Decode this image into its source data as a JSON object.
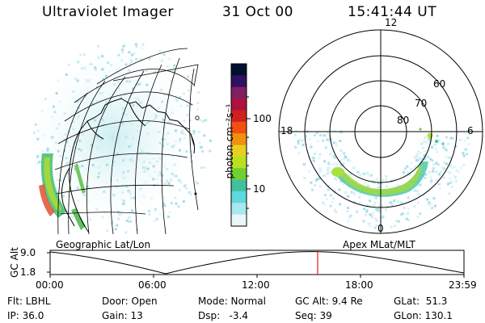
{
  "header": {
    "instrument": "Ultraviolet Imager",
    "date": "31 Oct 00",
    "time": "15:41:44 UT"
  },
  "colorbar": {
    "unit_label": "photon cm⁻²s⁻¹",
    "tick_labels": [
      "100",
      "10"
    ],
    "colors": [
      "#001030",
      "#301060",
      "#802060",
      "#b01040",
      "#d02020",
      "#f05010",
      "#f09010",
      "#e8d020",
      "#b8e020",
      "#70d030",
      "#40c0a0",
      "#60d8e0",
      "#a8e8f0",
      "#e8f8f8"
    ]
  },
  "left_panel": {
    "label": "Geographic Lat/Lon"
  },
  "right_panel": {
    "label": "Apex MLat/MLT",
    "mlt_labels": {
      "top": "12",
      "left": "18",
      "right": "6",
      "bottom": "0"
    },
    "lat_labels": [
      "60",
      "70",
      "80"
    ]
  },
  "altitude_plot": {
    "ylabel": "GC Alt",
    "yticks": [
      "9.0",
      "1.8"
    ],
    "xticks": [
      "00:00",
      "06:00",
      "12:00",
      "18:00",
      "23:59"
    ],
    "marker_color": "#e02020"
  },
  "info": {
    "flt": "Flt: LBHL",
    "ip": "IP: 36.0",
    "door": "Door: Open",
    "gain": "Gain: 13",
    "mode": "Mode: Normal",
    "dsp": "Dsp:   -3.4",
    "gcalt": "GC Alt: 9.4 Re",
    "seq": "Seq: 39",
    "glat": "GLat:  51.3",
    "glon": "GLon: 130.1"
  }
}
